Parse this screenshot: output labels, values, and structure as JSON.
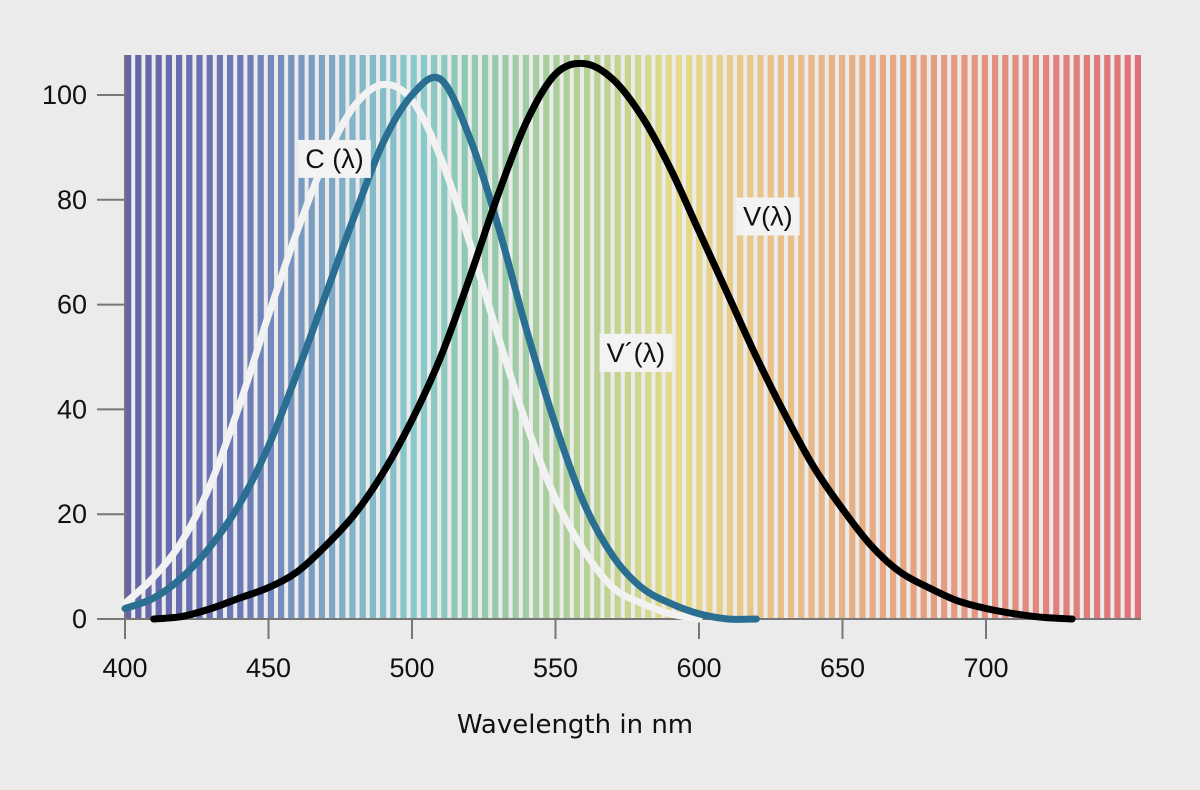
{
  "chart_data": {
    "type": "line",
    "title": "",
    "xlabel": "Wavelength in nm",
    "ylabel": "",
    "xlim": [
      400,
      750
    ],
    "ylim": [
      0,
      107
    ],
    "x_ticks": [
      400,
      450,
      500,
      550,
      600,
      650,
      700
    ],
    "y_ticks": [
      0,
      20,
      40,
      60,
      80,
      100
    ],
    "grid": false,
    "legend": "none",
    "background": "visible spectrum stripes (violet to red)",
    "series": [
      {
        "name": "C (λ)",
        "color": "#f2f2f2",
        "x": [
          400,
          410,
          420,
          430,
          440,
          450,
          460,
          470,
          480,
          490,
          500,
          510,
          520,
          530,
          540,
          550,
          560,
          570,
          580,
          590,
          600
        ],
        "y": [
          3,
          8,
          15,
          26,
          41,
          58,
          74,
          88,
          98,
          102,
          99,
          88,
          72,
          54,
          37,
          23,
          13,
          6,
          3,
          1,
          0
        ]
      },
      {
        "name": "V´(λ)",
        "color": "#2a6e92",
        "x": [
          400,
          410,
          420,
          430,
          440,
          450,
          460,
          470,
          480,
          490,
          500,
          510,
          520,
          530,
          540,
          550,
          560,
          570,
          580,
          590,
          600,
          610,
          620
        ],
        "y": [
          2,
          4,
          8,
          14,
          22,
          33,
          47,
          62,
          77,
          91,
          100,
          103,
          92,
          75,
          55,
          37,
          22,
          12,
          6,
          3,
          1,
          0,
          0
        ]
      },
      {
        "name": "V(λ)",
        "color": "#000000",
        "x": [
          410,
          420,
          430,
          440,
          450,
          460,
          470,
          480,
          490,
          500,
          510,
          520,
          530,
          540,
          550,
          560,
          570,
          580,
          590,
          600,
          610,
          620,
          630,
          640,
          650,
          660,
          670,
          680,
          690,
          700,
          710,
          720,
          730
        ],
        "y": [
          0,
          0.5,
          2,
          4,
          6,
          9,
          14,
          20,
          28,
          38,
          50,
          65,
          81,
          95,
          104,
          106,
          103,
          96,
          86,
          74,
          62,
          50,
          39,
          29,
          21,
          14,
          9,
          6,
          3.5,
          2,
          1,
          0.3,
          0
        ]
      }
    ],
    "annotations": [
      {
        "text": "C (λ)",
        "x": 473,
        "y": 88
      },
      {
        "text": "V(λ)",
        "x": 624,
        "y": 77
      },
      {
        "text": "V´(λ)",
        "x": 578,
        "y": 51
      }
    ]
  }
}
